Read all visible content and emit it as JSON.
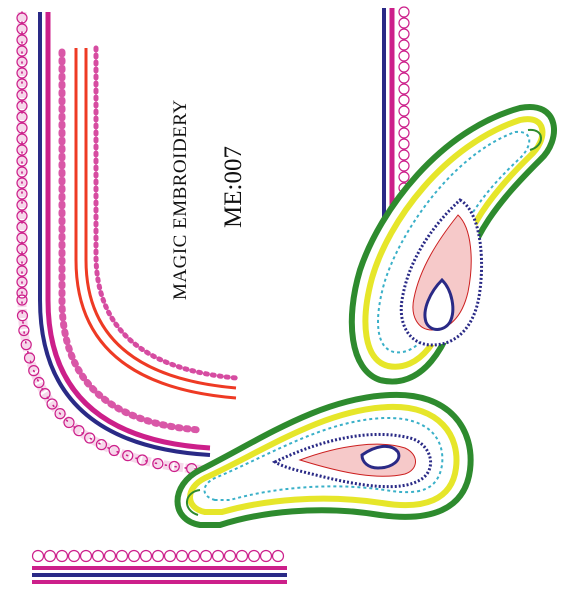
{
  "design": {
    "brand": "MAGIC EMBROIDERY",
    "code": "ME:007"
  },
  "colors": {
    "magenta": "#cc1f8a",
    "navy": "#2a2a86",
    "red": "#ee3a24",
    "green": "#2e8b2e",
    "yellow": "#e6e62a",
    "cyan": "#3ab0c8",
    "lime": "#a6d23a"
  },
  "icons": [
    "paisley-motif",
    "stitched-border"
  ]
}
